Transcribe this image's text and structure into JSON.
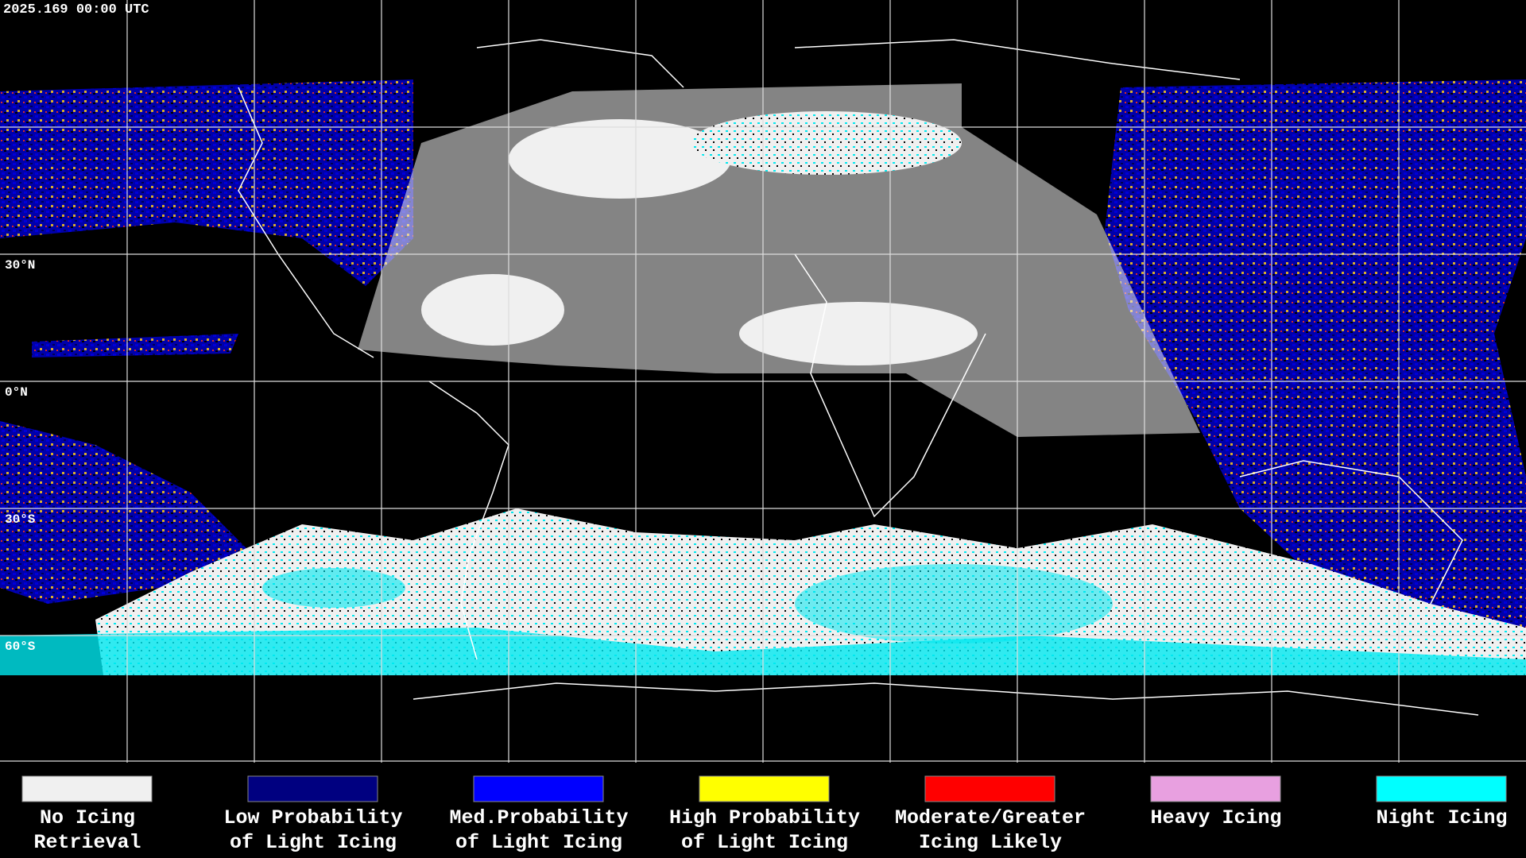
{
  "timestamp": "2025.169 00:00 UTC",
  "latitude_labels": [
    "30°N",
    "0°N",
    "30°S",
    "60°S"
  ],
  "legend": [
    {
      "color": "#f0f0f0",
      "lines": [
        "No Icing",
        "Retrieval"
      ]
    },
    {
      "color": "#000080",
      "lines": [
        "Low Probability",
        "of Light Icing"
      ]
    },
    {
      "color": "#0000ff",
      "lines": [
        "Med.Probability",
        "of Light Icing"
      ]
    },
    {
      "color": "#ffff00",
      "lines": [
        "High Probability",
        "of Light Icing"
      ]
    },
    {
      "color": "#ff0000",
      "lines": [
        "Moderate/Greater",
        "Icing Likely"
      ]
    },
    {
      "color": "#e8a0e0",
      "lines": [
        "Heavy Icing",
        ""
      ]
    },
    {
      "color": "#00ffff",
      "lines": [
        "Night Icing",
        ""
      ]
    }
  ]
}
